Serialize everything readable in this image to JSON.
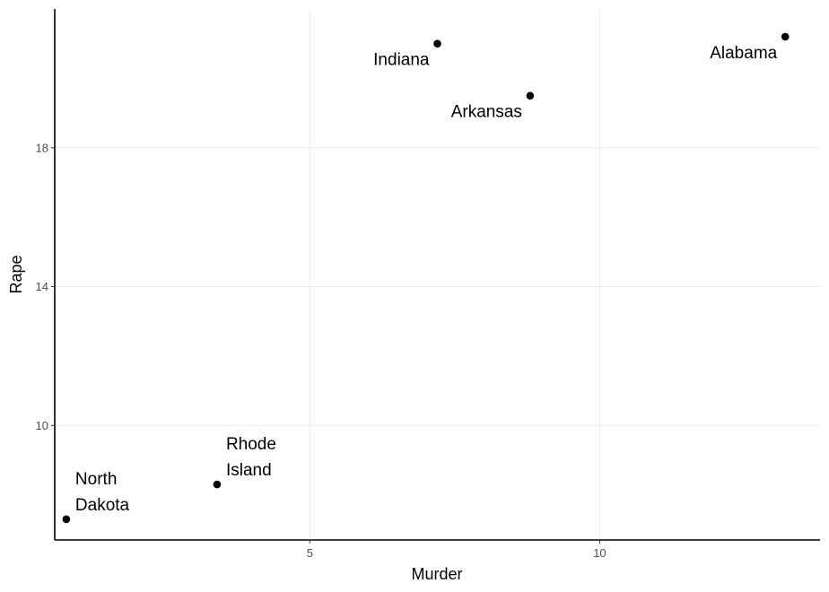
{
  "chart_data": {
    "type": "scatter",
    "title": "",
    "xlabel": "Murder",
    "ylabel": "Rape",
    "xlim": [
      0.6,
      13.8
    ],
    "ylim": [
      6.7,
      22
    ],
    "xticks": [
      5,
      10
    ],
    "yticks": [
      10,
      14,
      18
    ],
    "grid": true,
    "points": [
      {
        "x": 13.2,
        "y": 21.2,
        "label": [
          "Alabama"
        ],
        "label_pos": "left-below"
      },
      {
        "x": 7.2,
        "y": 21.0,
        "label": [
          "Indiana"
        ],
        "label_pos": "left-below"
      },
      {
        "x": 8.8,
        "y": 19.5,
        "label": [
          "Arkansas"
        ],
        "label_pos": "left-below"
      },
      {
        "x": 3.4,
        "y": 8.3,
        "label": [
          "Rhode",
          "Island"
        ],
        "label_pos": "right-above"
      },
      {
        "x": 0.8,
        "y": 7.3,
        "label": [
          "North",
          "Dakota"
        ],
        "label_pos": "right-above"
      }
    ]
  }
}
